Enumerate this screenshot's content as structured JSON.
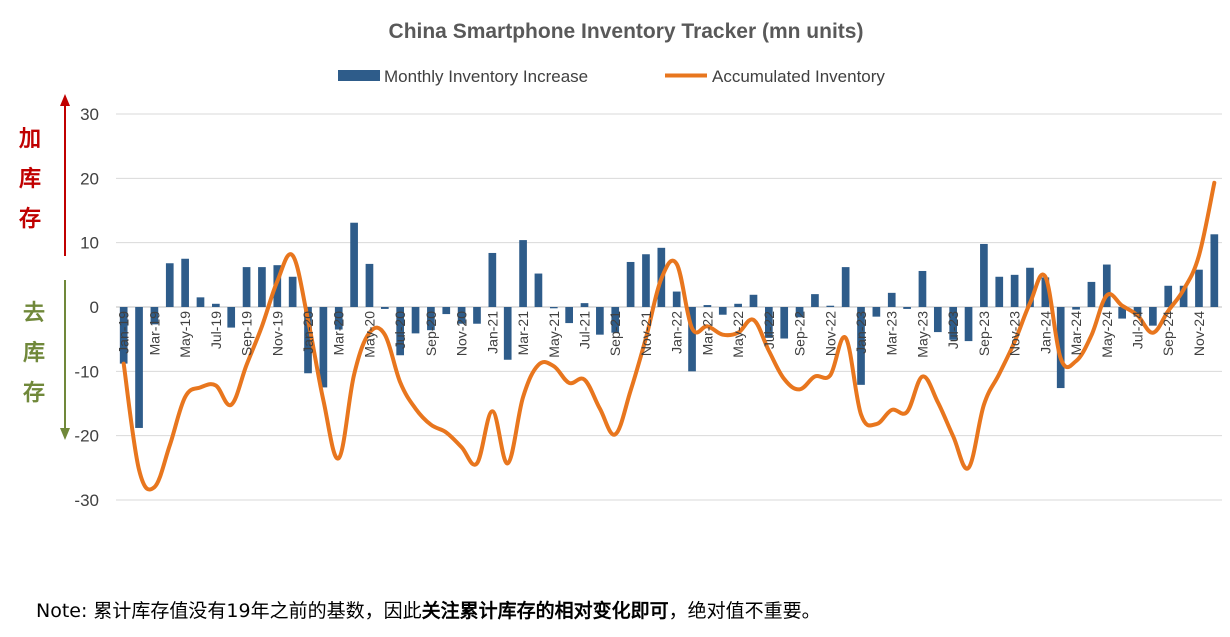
{
  "chart_data": {
    "type": "bar+line",
    "title": "China Smartphone Inventory Tracker (mn units)",
    "ylim": [
      -30,
      30
    ],
    "yticks": [
      -30,
      -20,
      -10,
      0,
      10,
      20,
      30
    ],
    "grid": true,
    "legend_position": "top",
    "series": [
      {
        "name": "Monthly Inventory Increase",
        "type": "bar",
        "color": "#2e5c8a",
        "values": [
          -8.8,
          -18.8,
          -2.7,
          6.8,
          7.5,
          1.5,
          0.5,
          -3.2,
          6.2,
          6.2,
          6.5,
          4.7,
          -10.3,
          -12.5,
          -3.5,
          13.1,
          6.7,
          -0.3,
          -7.5,
          -4.1,
          -3.6,
          -1.1,
          -2.6,
          -2.6,
          8.4,
          -8.2,
          10.4,
          5.2,
          -0.2,
          -2.5,
          0.6,
          -4.3,
          -4.0,
          7.0,
          8.2,
          9.2,
          2.4,
          -10.0,
          0.3,
          -1.2,
          0.5,
          1.9,
          -4.8,
          -4.9,
          -1.6,
          2.0,
          0.2,
          6.2,
          -12.1,
          -1.5,
          2.2,
          -0.3,
          5.6,
          -3.9,
          -5.1,
          -5.3,
          9.8,
          4.7,
          5.0,
          6.1,
          4.6,
          -12.6,
          -0.4,
          3.9,
          6.6,
          -1.8,
          -1.5,
          -2.9,
          3.3,
          3.3,
          5.8,
          11.3
        ]
      },
      {
        "name": "Accumulated Inventory",
        "type": "line",
        "color": "#e8761e",
        "values": [
          -8.8,
          -25.3,
          -28.0,
          -21.5,
          -14.0,
          -12.5,
          -12.2,
          -15.2,
          -9.0,
          -3.0,
          4.0,
          8.0,
          -2.0,
          -14.5,
          -23.5,
          -10.5,
          -4.0,
          -4.3,
          -11.7,
          -15.8,
          -18.3,
          -19.5,
          -21.8,
          -24.3,
          -16.2,
          -24.3,
          -14.0,
          -9.0,
          -9.2,
          -11.8,
          -11.3,
          -15.8,
          -19.8,
          -13.0,
          -4.8,
          4.4,
          6.7,
          -3.3,
          -3.0,
          -4.3,
          -4.0,
          -2.0,
          -6.8,
          -11.2,
          -12.8,
          -10.8,
          -10.6,
          -4.8,
          -16.7,
          -18.2,
          -16.0,
          -16.3,
          -10.8,
          -14.8,
          -20.1,
          -25.0,
          -15.2,
          -10.4,
          -5.4,
          0.6,
          4.7,
          -8.0,
          -8.4,
          -4.4,
          1.8,
          0.2,
          -1.3,
          -4.0,
          -0.6,
          2.7,
          8.0,
          19.3
        ]
      }
    ],
    "x_labels": [
      "Jan-19",
      "Mar-19",
      "May-19",
      "Jul-19",
      "Sep-19",
      "Nov-19",
      "Jan-20",
      "Mar-20",
      "May-20",
      "Jul-20",
      "Sep-20",
      "Nov-20",
      "Jan-21",
      "Mar-21",
      "May-21",
      "Jul-21",
      "Sep-21",
      "Nov-21",
      "Jan-22",
      "Mar-22",
      "May-22",
      "Jul-22",
      "Sep-22",
      "Nov-22",
      "Jan-23",
      "Mar-23",
      "May-23",
      "Jul-23",
      "Sep-23",
      "Nov-23",
      "Jan-24",
      "Mar-24",
      "May-24",
      "Jul-24",
      "Sep-24",
      "Nov-24"
    ]
  },
  "side_labels": {
    "up": [
      "加",
      "库",
      "存"
    ],
    "down": [
      "去",
      "库",
      "存"
    ]
  },
  "note": {
    "prefix": "Note: 累计库存值没有19年之前的基数，因此",
    "bold": "关注累计库存的相对变化即可",
    "suffix": "，绝对值不重要。"
  },
  "colors": {
    "bar": "#2e5c8a",
    "line": "#e8761e",
    "up_arrow": "#c00000",
    "down_arrow": "#70883a"
  }
}
